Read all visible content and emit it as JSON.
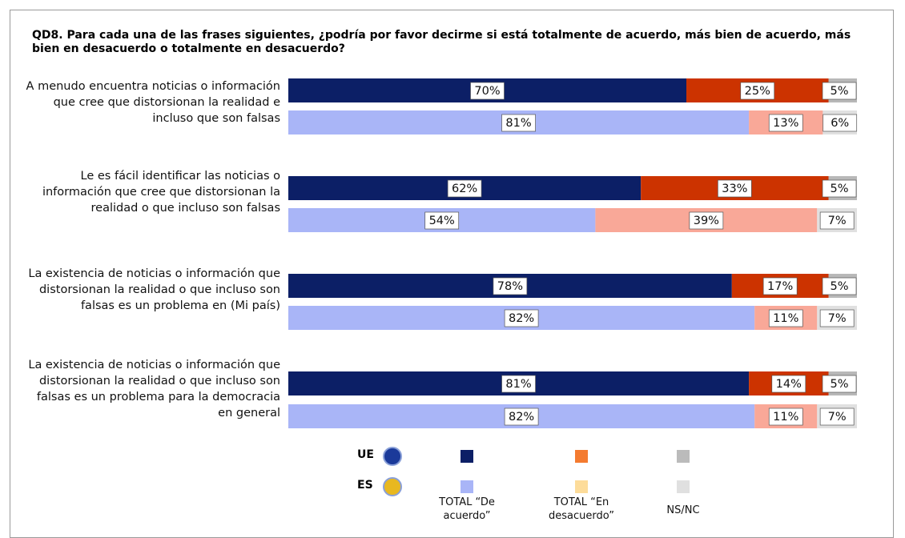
{
  "chart_data": {
    "type": "stacked-bar",
    "orientation": "horizontal",
    "title": "QD8. Para cada una de las frases siguientes, ¿podría por favor decirme si está totalmente de acuerdo, más bien de acuerdo, más bien en desacuerdo o totalmente en desacuerdo?",
    "categories": [
      "A menudo encuentra noticias o información que cree que distorsionan la realidad e incluso que son falsas",
      "Le es fácil identificar las noticias o información que cree que distorsionan la realidad o que incluso son falsas",
      "La existencia de noticias o información que distorsionan la realidad o que incluso son falsas es un problema en (Mi país)",
      "La existencia de noticias o información que distorsionan la realidad o que incluso son falsas es un problema para la democracia en general"
    ],
    "groups": [
      "UE",
      "ES"
    ],
    "xlim": [
      0,
      100
    ],
    "series": [
      {
        "name": "TOTAL “De acuerdo”",
        "colors": [
          "#0c1f66",
          "#a9b5f7"
        ],
        "legend_colors": [
          "#0c1f66",
          "#a9b5f7"
        ],
        "values": [
          [
            70,
            81
          ],
          [
            62,
            54
          ],
          [
            78,
            82
          ],
          [
            81,
            82
          ]
        ],
        "value_labels": [
          [
            "70%",
            "81%"
          ],
          [
            "62%",
            "54%"
          ],
          [
            "78%",
            "82%"
          ],
          [
            "81%",
            "82%"
          ]
        ]
      },
      {
        "name": "TOTAL “En desacuerdo”",
        "colors": [
          "#cc3300",
          "#f9a898"
        ],
        "legend_colors": [
          "#f47b30",
          "#fddc9a"
        ],
        "values": [
          [
            25,
            13
          ],
          [
            33,
            39
          ],
          [
            17,
            11
          ],
          [
            14,
            11
          ]
        ],
        "value_labels": [
          [
            "25%",
            "13%"
          ],
          [
            "33%",
            "39%"
          ],
          [
            "17%",
            "11%"
          ],
          [
            "14%",
            "11%"
          ]
        ]
      },
      {
        "name": "NS/NC",
        "colors": [
          "#b8b8b8",
          "#e0e0e0"
        ],
        "legend_colors": [
          "#bbbbbb",
          "#e0e0e0"
        ],
        "values": [
          [
            5,
            6
          ],
          [
            5,
            7
          ],
          [
            5,
            7
          ],
          [
            5,
            7
          ]
        ],
        "value_labels": [
          [
            "5%",
            "6%"
          ],
          [
            "5%",
            "7%"
          ],
          [
            "5%",
            "7%"
          ],
          [
            "5%",
            "7%"
          ]
        ]
      }
    ]
  }
}
